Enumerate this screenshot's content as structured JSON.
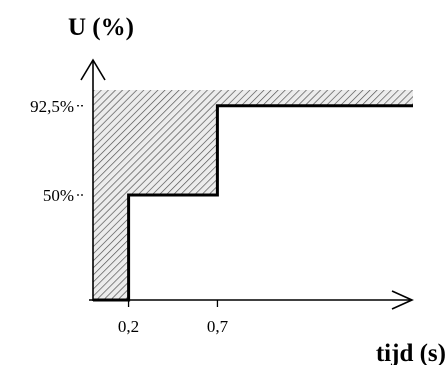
{
  "chart_data": {
    "type": "area",
    "ylabel": "U (%)",
    "xlabel": "tijd (s)",
    "x_ticks": [
      {
        "value": 0.2,
        "label": "0,2"
      },
      {
        "value": 0.7,
        "label": "0,7"
      }
    ],
    "y_ticks": [
      {
        "value": 50,
        "label": "50%"
      },
      {
        "value": 92.5,
        "label": "92,5%"
      }
    ],
    "xlim": [
      0,
      1.8
    ],
    "ylim": [
      0,
      105
    ],
    "boundary": {
      "x": [
        0,
        0.2,
        0.2,
        0.7,
        0.7,
        1.8
      ],
      "y": [
        0,
        0,
        50,
        50,
        92.5,
        92.5
      ]
    },
    "shaded_region": {
      "lower_boundary": "voltage curve",
      "upper_y": 100,
      "fill": "hatched"
    },
    "colors": {
      "axis": "#000000",
      "curve": "#000000",
      "hatch_background": "#ececec",
      "hatch_lines": "#4a4a4a"
    }
  }
}
